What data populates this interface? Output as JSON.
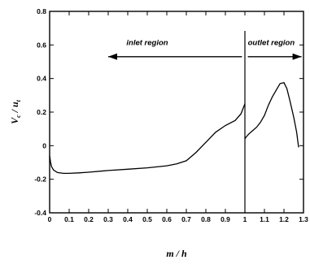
{
  "chart_data": {
    "type": "line",
    "xlabel": "m / h",
    "ylabel_main": "V",
    "ylabel_main_sub": "c",
    "ylabel_sep": " / ",
    "ylabel_denom": "u",
    "ylabel_denom_sub": "t",
    "xlim": [
      0,
      1.3
    ],
    "ylim": [
      -0.4,
      0.8
    ],
    "x_ticks": [
      {
        "value": 0,
        "label": "0"
      },
      {
        "value": 0.1,
        "label": "0.1"
      },
      {
        "value": 0.2,
        "label": "0.2"
      },
      {
        "value": 0.3,
        "label": "0.3"
      },
      {
        "value": 0.4,
        "label": "0.4"
      },
      {
        "value": 0.5,
        "label": "0.5"
      },
      {
        "value": 0.6,
        "label": "0.6"
      },
      {
        "value": 0.7,
        "label": "0.7"
      },
      {
        "value": 0.8,
        "label": "0.8"
      },
      {
        "value": 0.9,
        "label": "0.9"
      },
      {
        "value": 1.0,
        "label": "1"
      },
      {
        "value": 1.1,
        "label": "1.1"
      },
      {
        "value": 1.2,
        "label": "1.2"
      },
      {
        "value": 1.3,
        "label": "1.3"
      }
    ],
    "y_ticks": [
      {
        "value": -0.4,
        "label": "-0.4"
      },
      {
        "value": -0.2,
        "label": "-0.2"
      },
      {
        "value": 0,
        "label": "0"
      },
      {
        "value": 0.2,
        "label": "0.2"
      },
      {
        "value": 0.4,
        "label": "0.4"
      },
      {
        "value": 0.6,
        "label": "0.6"
      },
      {
        "value": 0.8,
        "label": "0.8"
      }
    ],
    "divider_x": 1.0,
    "annotations": {
      "inlet": {
        "text": "inlet region",
        "arrow_from": 0.985,
        "arrow_to": 0.3,
        "arrow_y": 0.53,
        "text_x": 0.5,
        "text_y": 0.6
      },
      "outlet": {
        "text": "outlet region",
        "arrow_from": 1.015,
        "arrow_to": 1.29,
        "arrow_y": 0.53,
        "text_x": 1.135,
        "text_y": 0.6
      }
    },
    "series": [
      {
        "x": [
          0,
          0.005,
          0.01,
          0.02,
          0.04,
          0.07,
          0.1,
          0.15,
          0.2,
          0.3,
          0.4,
          0.5,
          0.6,
          0.65,
          0.7,
          0.75,
          0.8,
          0.85,
          0.9,
          0.95,
          0.98,
          1.0
        ],
        "y": [
          -0.06,
          -0.1,
          -0.125,
          -0.145,
          -0.16,
          -0.165,
          -0.165,
          -0.162,
          -0.158,
          -0.148,
          -0.14,
          -0.132,
          -0.12,
          -0.108,
          -0.09,
          -0.04,
          0.02,
          0.08,
          0.12,
          0.15,
          0.19,
          0.25
        ]
      },
      {
        "x": [
          1.0,
          1.005,
          1.02,
          1.04,
          1.06,
          1.08,
          1.1,
          1.12,
          1.14,
          1.16,
          1.18,
          1.2,
          1.215,
          1.23,
          1.25,
          1.265,
          1.275
        ],
        "y": [
          0.04,
          0.05,
          0.07,
          0.09,
          0.11,
          0.14,
          0.18,
          0.24,
          0.29,
          0.33,
          0.37,
          0.375,
          0.34,
          0.27,
          0.17,
          0.08,
          -0.01
        ]
      }
    ]
  }
}
